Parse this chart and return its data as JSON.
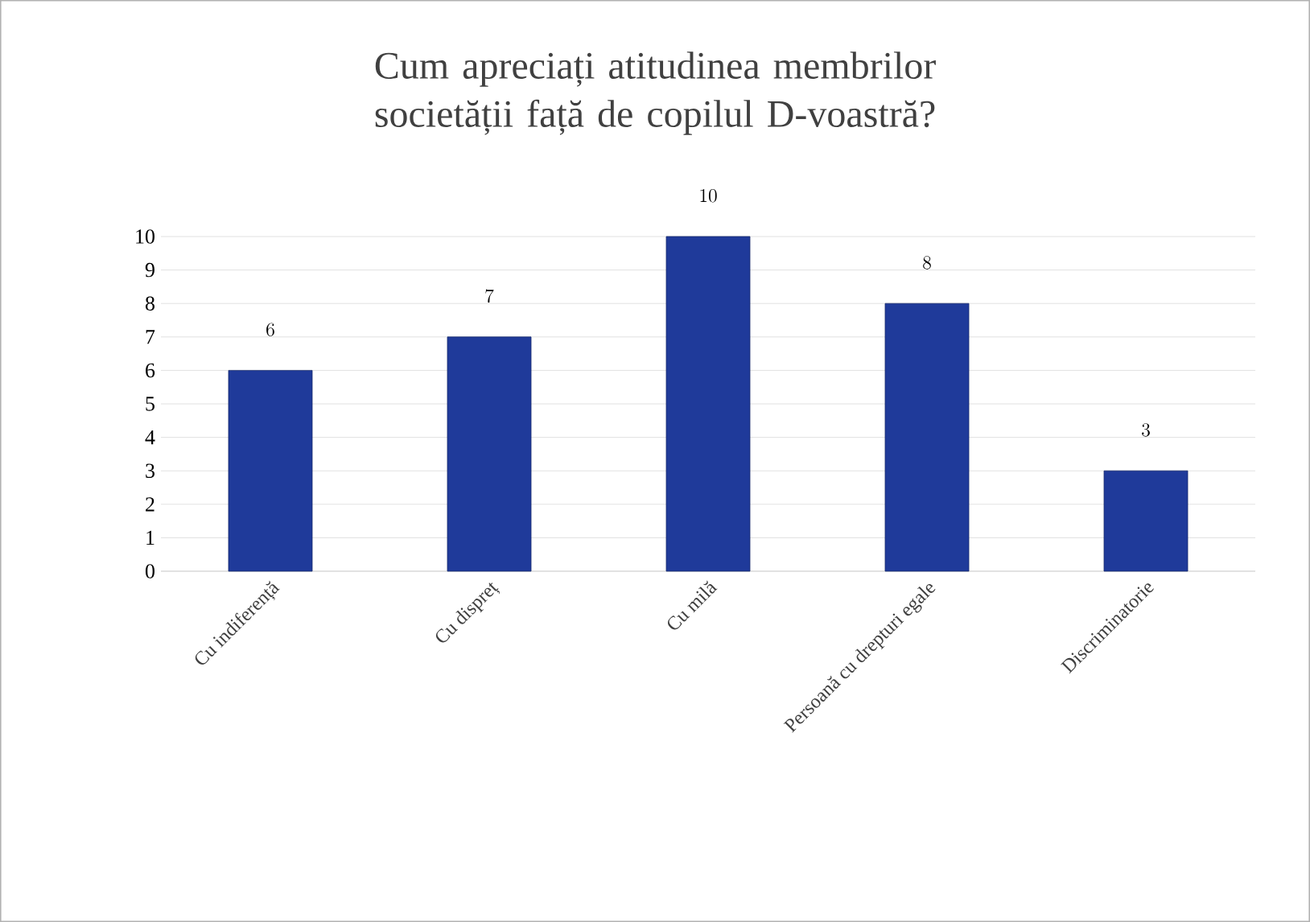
{
  "chart_data": {
    "type": "bar",
    "title": "Cum apreciați atitudinea membrilor societății față de copilul D-voastră?",
    "categories": [
      "Cu indiferență",
      "Cu dispreț",
      "Cu milă",
      "Persoană cu drepturi egale",
      "Discriminatorie"
    ],
    "values": [
      6,
      7,
      10,
      8,
      3
    ],
    "color": "#1f3a9a",
    "ylim": [
      0,
      10
    ],
    "yticks": [
      0,
      1,
      2,
      3,
      4,
      5,
      6,
      7,
      8,
      9,
      10
    ],
    "grid": "y",
    "data_labels": true
  }
}
